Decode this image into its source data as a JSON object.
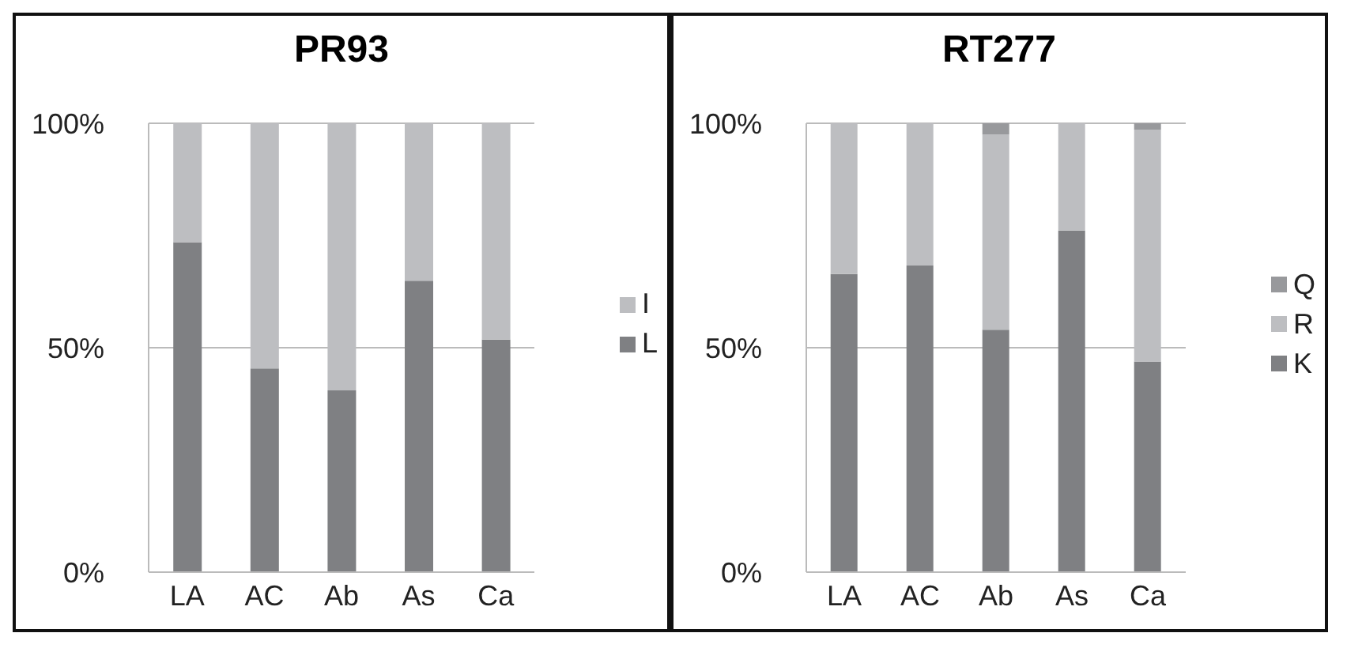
{
  "chart_data": [
    {
      "type": "bar",
      "title": "PR93",
      "categories": [
        "LA",
        "AC",
        "Ab",
        "As",
        "Ca"
      ],
      "stacked": true,
      "series": [
        {
          "name": "L",
          "color": "#7f8083",
          "values": [
            73.5,
            45.4,
            40.5,
            64.9,
            51.8
          ]
        },
        {
          "name": "I",
          "color": "#bdbec1",
          "values": [
            26.5,
            54.6,
            59.5,
            35.1,
            48.2
          ]
        }
      ],
      "ylim": [
        0,
        100
      ],
      "yticks": [
        {
          "value": 0,
          "label": "0%"
        },
        {
          "value": 50,
          "label": "50%"
        },
        {
          "value": 100,
          "label": "100%"
        }
      ],
      "grid": "y",
      "legend": "right"
    },
    {
      "type": "bar",
      "title": "RT277",
      "categories": [
        "LA",
        "AC",
        "Ab",
        "As",
        "Ca"
      ],
      "stacked": true,
      "series": [
        {
          "name": "K",
          "color": "#7f8083",
          "values": [
            66.4,
            68.3,
            54.0,
            76.1,
            46.9
          ]
        },
        {
          "name": "R",
          "color": "#bdbec1",
          "values": [
            33.6,
            31.7,
            43.5,
            23.9,
            51.7
          ]
        },
        {
          "name": "Q",
          "color": "#98999c",
          "values": [
            0,
            0,
            2.5,
            0,
            1.4
          ]
        }
      ],
      "ylim": [
        0,
        100
      ],
      "yticks": [
        {
          "value": 0,
          "label": "0%"
        },
        {
          "value": 50,
          "label": "50%"
        },
        {
          "value": 100,
          "label": "100%"
        }
      ],
      "grid": "y",
      "legend": "right"
    }
  ]
}
